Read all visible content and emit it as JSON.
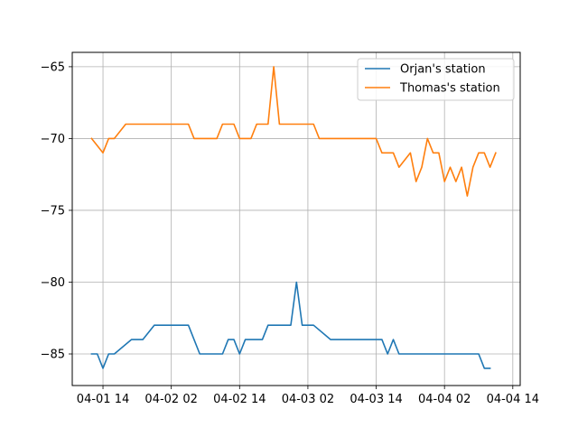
{
  "chart_data": {
    "type": "line",
    "x_ticks": [
      "04-01 14",
      "04-02 02",
      "04-02 14",
      "04-03 02",
      "04-03 14",
      "04-04 02",
      "04-04 14"
    ],
    "x_tick_hours": [
      14,
      26,
      38,
      50,
      62,
      74,
      86
    ],
    "xlim_hours": [
      8.6,
      87.3
    ],
    "ylim": [
      -87.2,
      -64.0
    ],
    "y_ticks": [
      -65,
      -70,
      -75,
      -80,
      -85
    ],
    "y_tick_labels": [
      "−65",
      "−70",
      "−75",
      "−80",
      "−85"
    ],
    "grid": true,
    "legend": "top-right",
    "series": [
      {
        "name": "Orjan's station",
        "color": "#1f77b4",
        "points": [
          [
            12,
            -85
          ],
          [
            13,
            -85
          ],
          [
            14,
            -86
          ],
          [
            15,
            -85
          ],
          [
            16,
            -85
          ],
          [
            19,
            -84
          ],
          [
            21,
            -84
          ],
          [
            23,
            -83
          ],
          [
            26,
            -83
          ],
          [
            29,
            -83
          ],
          [
            31,
            -85
          ],
          [
            35,
            -85
          ],
          [
            36,
            -84
          ],
          [
            37,
            -84
          ],
          [
            38,
            -85
          ],
          [
            39,
            -84
          ],
          [
            42,
            -84
          ],
          [
            43,
            -83
          ],
          [
            47,
            -83
          ],
          [
            48,
            -80
          ],
          [
            49,
            -83
          ],
          [
            51,
            -83
          ],
          [
            54,
            -84
          ],
          [
            63,
            -84
          ],
          [
            64,
            -85
          ],
          [
            65,
            -84
          ],
          [
            66,
            -85
          ],
          [
            80,
            -85
          ],
          [
            81,
            -86
          ],
          [
            82,
            -86
          ]
        ]
      },
      {
        "name": "Thomas's station",
        "color": "#ff7f0e",
        "points": [
          [
            12,
            -70
          ],
          [
            14,
            -71
          ],
          [
            15,
            -70
          ],
          [
            16,
            -70
          ],
          [
            18,
            -69
          ],
          [
            29,
            -69
          ],
          [
            30,
            -70
          ],
          [
            34,
            -70
          ],
          [
            35,
            -69
          ],
          [
            37,
            -69
          ],
          [
            38,
            -70
          ],
          [
            40,
            -70
          ],
          [
            41,
            -69
          ],
          [
            43,
            -69
          ],
          [
            44,
            -65
          ],
          [
            45,
            -69
          ],
          [
            51,
            -69
          ],
          [
            52,
            -70
          ],
          [
            62,
            -70
          ],
          [
            63,
            -71
          ],
          [
            65,
            -71
          ],
          [
            66,
            -72
          ],
          [
            68,
            -71
          ],
          [
            69,
            -73
          ],
          [
            70,
            -72
          ],
          [
            71,
            -70
          ],
          [
            72,
            -71
          ],
          [
            73,
            -71
          ],
          [
            74,
            -73
          ],
          [
            75,
            -72
          ],
          [
            76,
            -73
          ],
          [
            77,
            -72
          ],
          [
            78,
            -74
          ],
          [
            79,
            -72
          ],
          [
            80,
            -71
          ],
          [
            81,
            -71
          ],
          [
            82,
            -72
          ],
          [
            83,
            -71
          ]
        ]
      }
    ]
  }
}
